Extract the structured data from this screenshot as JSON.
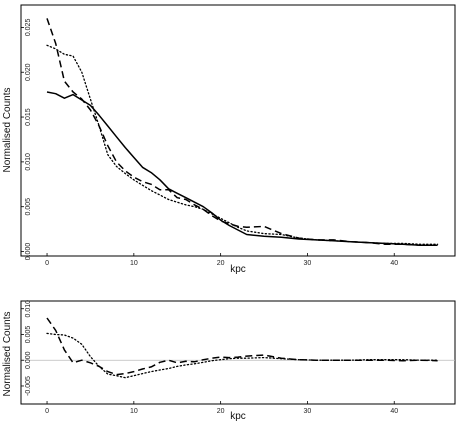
{
  "chart_data": [
    {
      "type": "line",
      "title": "",
      "xlabel": "kpc",
      "ylabel": "Normalised Counts",
      "xlim": [
        -3,
        47
      ],
      "ylim": [
        -0.0005,
        0.0275
      ],
      "x_ticks": [
        "0",
        "10",
        "20",
        "30",
        "40"
      ],
      "x_tick_values": [
        0,
        10,
        20,
        30,
        40
      ],
      "y_ticks": [
        "0.000",
        "0.005",
        "0.010",
        "0.015",
        "0.020",
        "0.025"
      ],
      "y_tick_values": [
        0,
        0.005,
        0.01,
        0.015,
        0.02,
        0.025
      ],
      "grid": false,
      "series": [
        {
          "style": "solid",
          "x": [
            0,
            1,
            2,
            3,
            4,
            5,
            6,
            7,
            8,
            9,
            10,
            11,
            12,
            13,
            14,
            15,
            16,
            17,
            18,
            19,
            20,
            21,
            22,
            23,
            25,
            27,
            29,
            31,
            33,
            35,
            37,
            39,
            41,
            43,
            45
          ],
          "y": [
            0.0178,
            0.0176,
            0.0171,
            0.0175,
            0.0169,
            0.0163,
            0.0152,
            0.014,
            0.0128,
            0.0116,
            0.0105,
            0.0094,
            0.0088,
            0.008,
            0.007,
            0.0065,
            0.006,
            0.0055,
            0.005,
            0.0043,
            0.0035,
            0.0029,
            0.0024,
            0.0019,
            0.0017,
            0.0016,
            0.0014,
            0.0013,
            0.0012,
            0.0011,
            0.001,
            0.0009,
            0.0008,
            0.0007,
            0.0007
          ]
        },
        {
          "style": "dashed",
          "x": [
            0,
            1,
            2,
            3,
            4,
            5,
            6,
            7,
            8,
            9,
            10,
            11,
            12,
            13,
            14,
            15,
            16,
            17,
            18,
            19,
            20,
            21,
            22,
            23,
            25,
            27,
            29,
            31,
            33,
            35,
            37,
            39,
            41,
            43,
            45
          ],
          "y": [
            0.026,
            0.0232,
            0.019,
            0.0178,
            0.017,
            0.0158,
            0.014,
            0.0118,
            0.01,
            0.009,
            0.0083,
            0.0078,
            0.0075,
            0.0069,
            0.0069,
            0.006,
            0.0058,
            0.0052,
            0.0047,
            0.004,
            0.0034,
            0.0031,
            0.0028,
            0.0027,
            0.0028,
            0.002,
            0.0015,
            0.0013,
            0.0013,
            0.0011,
            0.001,
            0.0008,
            0.0008,
            0.0007,
            0.0007
          ]
        },
        {
          "style": "dotted",
          "x": [
            0,
            1,
            2,
            3,
            4,
            5,
            6,
            7,
            8,
            9,
            10,
            11,
            12,
            13,
            14,
            15,
            16,
            17,
            18,
            19,
            20,
            21,
            22,
            23,
            25,
            27,
            29,
            31,
            33,
            35,
            37,
            39,
            41,
            43,
            45
          ],
          "y": [
            0.023,
            0.0226,
            0.022,
            0.0218,
            0.02,
            0.017,
            0.014,
            0.0108,
            0.0095,
            0.0087,
            0.008,
            0.0074,
            0.0068,
            0.0063,
            0.0058,
            0.0055,
            0.0052,
            0.005,
            0.0047,
            0.0042,
            0.0037,
            0.0032,
            0.0027,
            0.0023,
            0.002,
            0.0019,
            0.0015,
            0.0013,
            0.0012,
            0.0011,
            0.001,
            0.0009,
            0.0009,
            0.0008,
            0.0008
          ]
        }
      ]
    },
    {
      "type": "line",
      "title": "",
      "xlabel": "kpc",
      "ylabel": "Normalised Counts",
      "xlim": [
        -3,
        47
      ],
      "ylim": [
        -0.0085,
        0.0115
      ],
      "x_ticks": [
        "0",
        "10",
        "20",
        "30",
        "40"
      ],
      "x_tick_values": [
        0,
        10,
        20,
        30,
        40
      ],
      "y_ticks": [
        "-0.005",
        "0.000",
        "0.005",
        "0.010"
      ],
      "y_tick_values": [
        -0.005,
        0,
        0.005,
        0.01
      ],
      "grid": false,
      "reference_line": 0,
      "series": [
        {
          "style": "dashed",
          "x": [
            0,
            1,
            2,
            3,
            4,
            5,
            6,
            7,
            8,
            9,
            10,
            11,
            12,
            13,
            14,
            15,
            16,
            17,
            18,
            19,
            20,
            21,
            22,
            23,
            25,
            27,
            29,
            31,
            33,
            35,
            37,
            39,
            41,
            43,
            45
          ],
          "y": [
            0.0082,
            0.0058,
            0.002,
            -0.0005,
            0.0,
            -0.0005,
            -0.0012,
            -0.0022,
            -0.0028,
            -0.0026,
            -0.0022,
            -0.0017,
            -0.0013,
            -0.0004,
            0.0,
            -0.0005,
            -0.0002,
            -0.0003,
            0.0001,
            0.0004,
            0.0006,
            0.0005,
            0.0006,
            0.0008,
            0.001,
            0.0004,
            0.0001,
            0.0,
            0.0,
            0.0,
            0.0,
            0.0,
            -0.0001,
            0.0,
            -0.0001
          ]
        },
        {
          "style": "dotted",
          "x": [
            0,
            1,
            2,
            3,
            4,
            5,
            6,
            7,
            8,
            9,
            10,
            11,
            12,
            13,
            14,
            15,
            16,
            17,
            18,
            19,
            20,
            21,
            22,
            23,
            25,
            27,
            29,
            31,
            33,
            35,
            37,
            39,
            41,
            43,
            45
          ],
          "y": [
            0.0052,
            0.005,
            0.0049,
            0.0043,
            0.0031,
            0.0007,
            -0.0012,
            -0.0027,
            -0.003,
            -0.0034,
            -0.003,
            -0.0026,
            -0.0022,
            -0.0019,
            -0.0016,
            -0.0012,
            -0.0009,
            -0.0007,
            -0.0004,
            -0.0001,
            0.0001,
            0.0003,
            0.0004,
            0.0004,
            0.0005,
            0.0003,
            0.0001,
            0.0,
            0.0,
            0.0,
            0.0001,
            0.0001,
            0.0001,
            0.0,
            0.0
          ]
        }
      ]
    }
  ]
}
